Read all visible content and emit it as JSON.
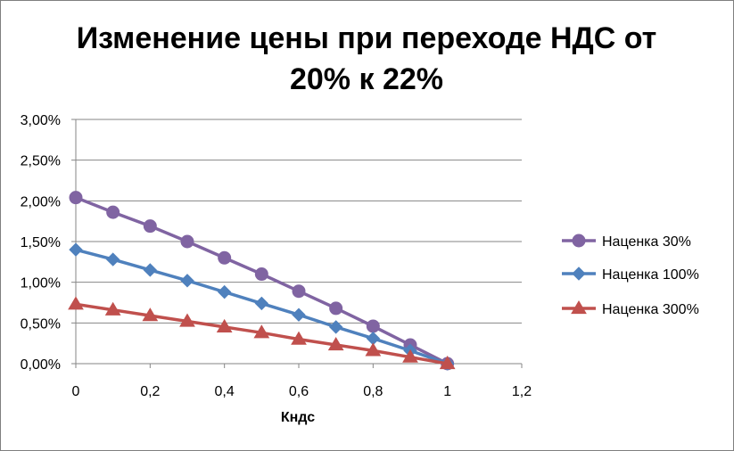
{
  "chart_data": {
    "type": "line",
    "title_lines": [
      "Изменение цены при переходе НДС от",
      "20% к 22%"
    ],
    "xlabel": "Кндс",
    "ylabel": "",
    "xlim": [
      0,
      1.2
    ],
    "ylim": [
      0,
      0.03
    ],
    "x_ticks": [
      "0",
      "0,2",
      "0,4",
      "0,6",
      "0,8",
      "1",
      "1,2"
    ],
    "y_ticks": [
      "0,00%",
      "0,50%",
      "1,00%",
      "1,50%",
      "2,00%",
      "2,50%",
      "3,00%"
    ],
    "grid": "horizontal",
    "legend_position": "right",
    "x": [
      0,
      0.1,
      0.2,
      0.3,
      0.4,
      0.5,
      0.6,
      0.7,
      0.8,
      0.9,
      1.0
    ],
    "series": [
      {
        "name": "Наценка 30%",
        "color": "#8064a2",
        "marker": "circle",
        "values": [
          0.0204,
          0.0186,
          0.0169,
          0.015,
          0.013,
          0.011,
          0.0089,
          0.0068,
          0.0046,
          0.0023,
          0.0
        ]
      },
      {
        "name": "Наценка 100%",
        "color": "#4f81bd",
        "marker": "diamond",
        "values": [
          0.014,
          0.0128,
          0.0115,
          0.0102,
          0.0088,
          0.0074,
          0.006,
          0.0045,
          0.0031,
          0.0016,
          0.0
        ]
      },
      {
        "name": "Наценка 300%",
        "color": "#c0504d",
        "marker": "triangle",
        "values": [
          0.0073,
          0.0066,
          0.0059,
          0.0052,
          0.0045,
          0.0038,
          0.003,
          0.0023,
          0.0016,
          0.0008,
          0.0
        ]
      }
    ]
  }
}
